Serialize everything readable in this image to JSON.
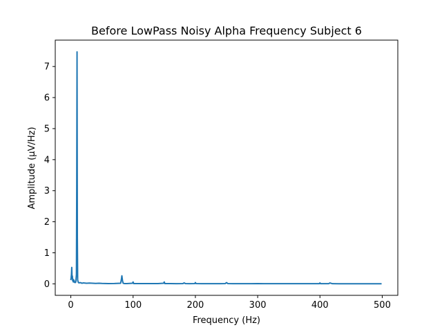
{
  "chart_data": {
    "type": "line",
    "title": "Before LowPass Noisy Alpha Frequency Subject 6",
    "xlabel": "Frequency (Hz)",
    "ylabel": "Amplitude (μV/Hz)",
    "xlim": [
      -25,
      525
    ],
    "ylim": [
      -0.37,
      7.85
    ],
    "xticks": [
      0,
      100,
      200,
      300,
      400,
      500
    ],
    "yticks": [
      0,
      1,
      2,
      3,
      4,
      5,
      6,
      7
    ],
    "grid": false,
    "legend": "none",
    "color": "#1f77b4",
    "series": [
      {
        "x": [
          0,
          0.5,
          1,
          1.5,
          2,
          2.5,
          3,
          3.5,
          4,
          5,
          6,
          7,
          8,
          9,
          9.5,
          10,
          10.5,
          11,
          12,
          13,
          15,
          18,
          20,
          25,
          30,
          35,
          40,
          45,
          50,
          60,
          70,
          80,
          81,
          82,
          83,
          84,
          86,
          90,
          99,
          100,
          101,
          110,
          120,
          130,
          140,
          149,
          150,
          151,
          160,
          170,
          180,
          182,
          184,
          190,
          199,
          200,
          201,
          210,
          220,
          230,
          240,
          248,
          250,
          252,
          260,
          270,
          280,
          290,
          300,
          310,
          320,
          330,
          340,
          350,
          360,
          370,
          380,
          390,
          399,
          400,
          401,
          410,
          414,
          416,
          420,
          430,
          440,
          450,
          460,
          470,
          480,
          490,
          499
        ],
        "y": [
          0.12,
          0.2,
          0.3,
          0.53,
          0.18,
          0.25,
          0.1,
          0.15,
          0.06,
          0.12,
          0.05,
          0.04,
          0.06,
          0.3,
          3.2,
          7.47,
          1.5,
          0.12,
          0.05,
          0.03,
          0.04,
          0.02,
          0.03,
          0.02,
          0.025,
          0.02,
          0.015,
          0.02,
          0.015,
          0.01,
          0.012,
          0.02,
          0.12,
          0.26,
          0.1,
          0.02,
          0.01,
          0.01,
          0.02,
          0.06,
          0.01,
          0.008,
          0.01,
          0.008,
          0.01,
          0.02,
          0.06,
          0.01,
          0.008,
          0.006,
          0.01,
          0.03,
          0.008,
          0.006,
          0.01,
          0.04,
          0.01,
          0.006,
          0.005,
          0.005,
          0.006,
          0.01,
          0.04,
          0.01,
          0.005,
          0.005,
          0.005,
          0.005,
          0.01,
          0.005,
          0.005,
          0.005,
          0.005,
          0.005,
          0.005,
          0.005,
          0.005,
          0.005,
          0.005,
          0.03,
          0.005,
          0.005,
          0.005,
          0.03,
          0.005,
          0.004,
          0.004,
          0.004,
          0.004,
          0.004,
          0.004,
          0.004,
          0.004
        ]
      }
    ]
  }
}
